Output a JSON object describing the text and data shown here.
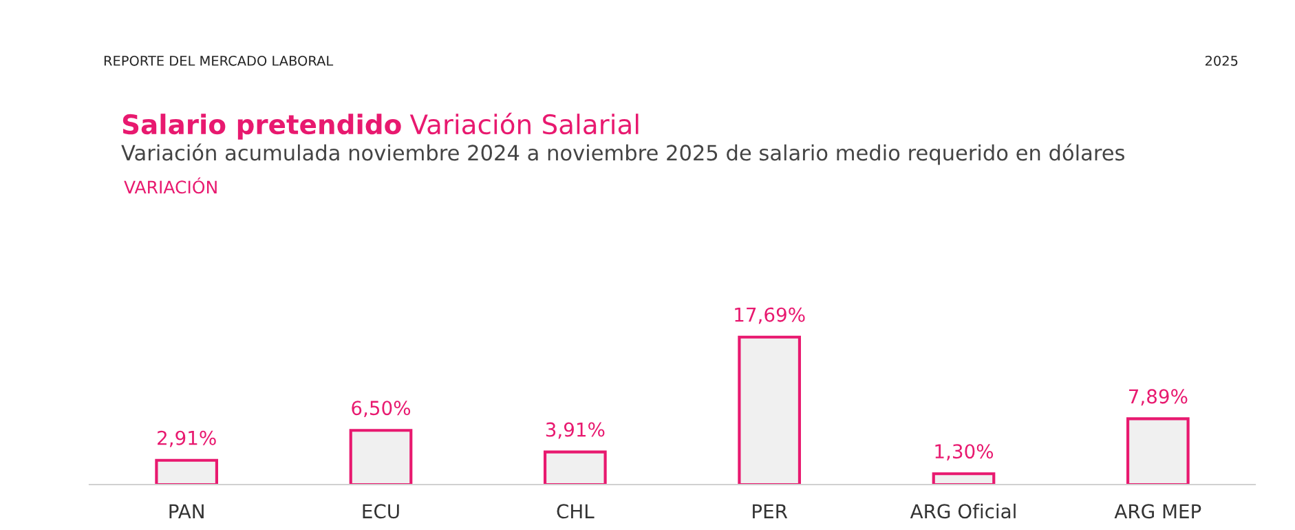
{
  "chart_data": {
    "type": "bar",
    "title": "Salario pretendido",
    "subtitle": "Variación acumulada noviembre 2024 a noviembre 2025 de salario medio requerido en dólares",
    "annotations": [
      "Variación Salarial",
      "REPORTE DEL MERCADO LABORAL",
      "2025",
      "VARIACIÓN"
    ],
    "categories": [
      "PAN",
      "ECU",
      "CHL",
      "PER",
      "ARG Oficial",
      "ARG MEP"
    ],
    "values": [
      2.91,
      6.5,
      3.91,
      17.69,
      1.3,
      7.89
    ],
    "value_labels": [
      "2,91%",
      "6,50%",
      "3,91%",
      "17,69%",
      "1,30%",
      "7,89%"
    ],
    "color": "#e8196f",
    "grid": false,
    "legend": false
  }
}
